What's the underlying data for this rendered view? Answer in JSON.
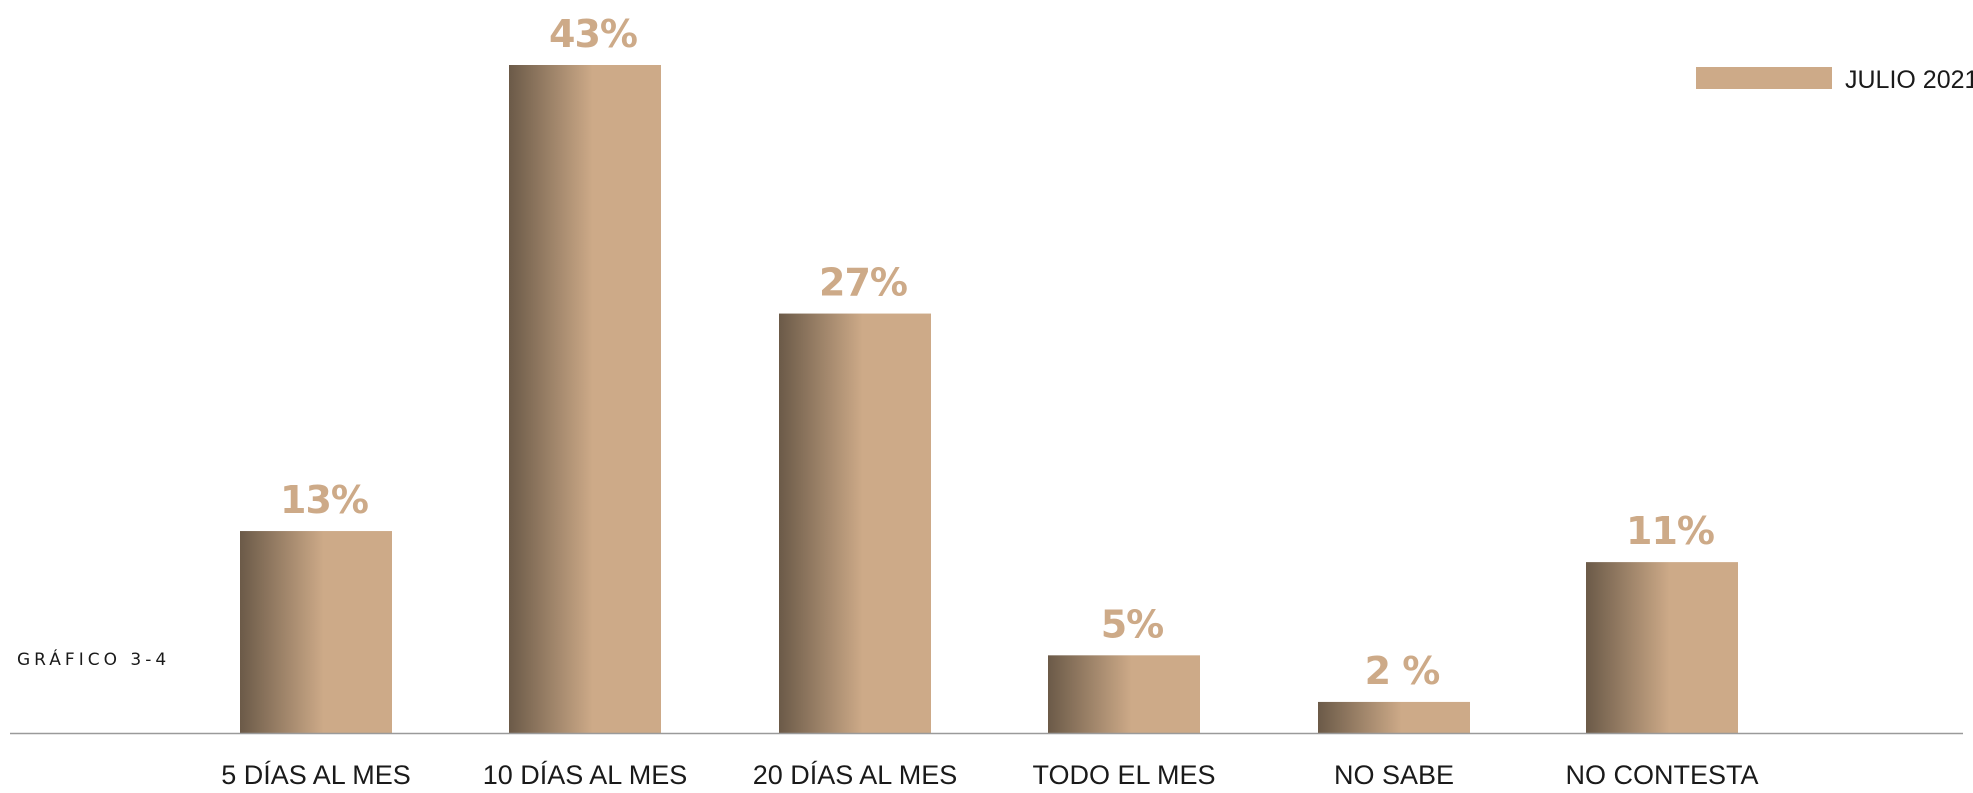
{
  "chart_data": {
    "type": "bar",
    "categories": [
      "5 DÍAS AL MES",
      "10 DÍAS AL MES",
      "20 DÍAS AL MES",
      "TODO EL MES",
      "NO SABE",
      "NO CONTESTA"
    ],
    "series": [
      {
        "name": "JULIO 2021",
        "values": [
          13,
          43,
          27,
          5,
          2,
          11
        ],
        "labels": [
          "13%",
          "43%",
          "27%",
          "5%",
          "2 %",
          "11%"
        ]
      }
    ],
    "ylim": [
      0,
      43
    ],
    "grid": false,
    "legend": "top-right"
  },
  "side_label": "GRÁFICO 3-4",
  "colors": {
    "bar_light": "#cdaa88",
    "bar_dark": "#6b5a48",
    "label": "#cdaa88",
    "baseline": "#9a9a9a"
  }
}
